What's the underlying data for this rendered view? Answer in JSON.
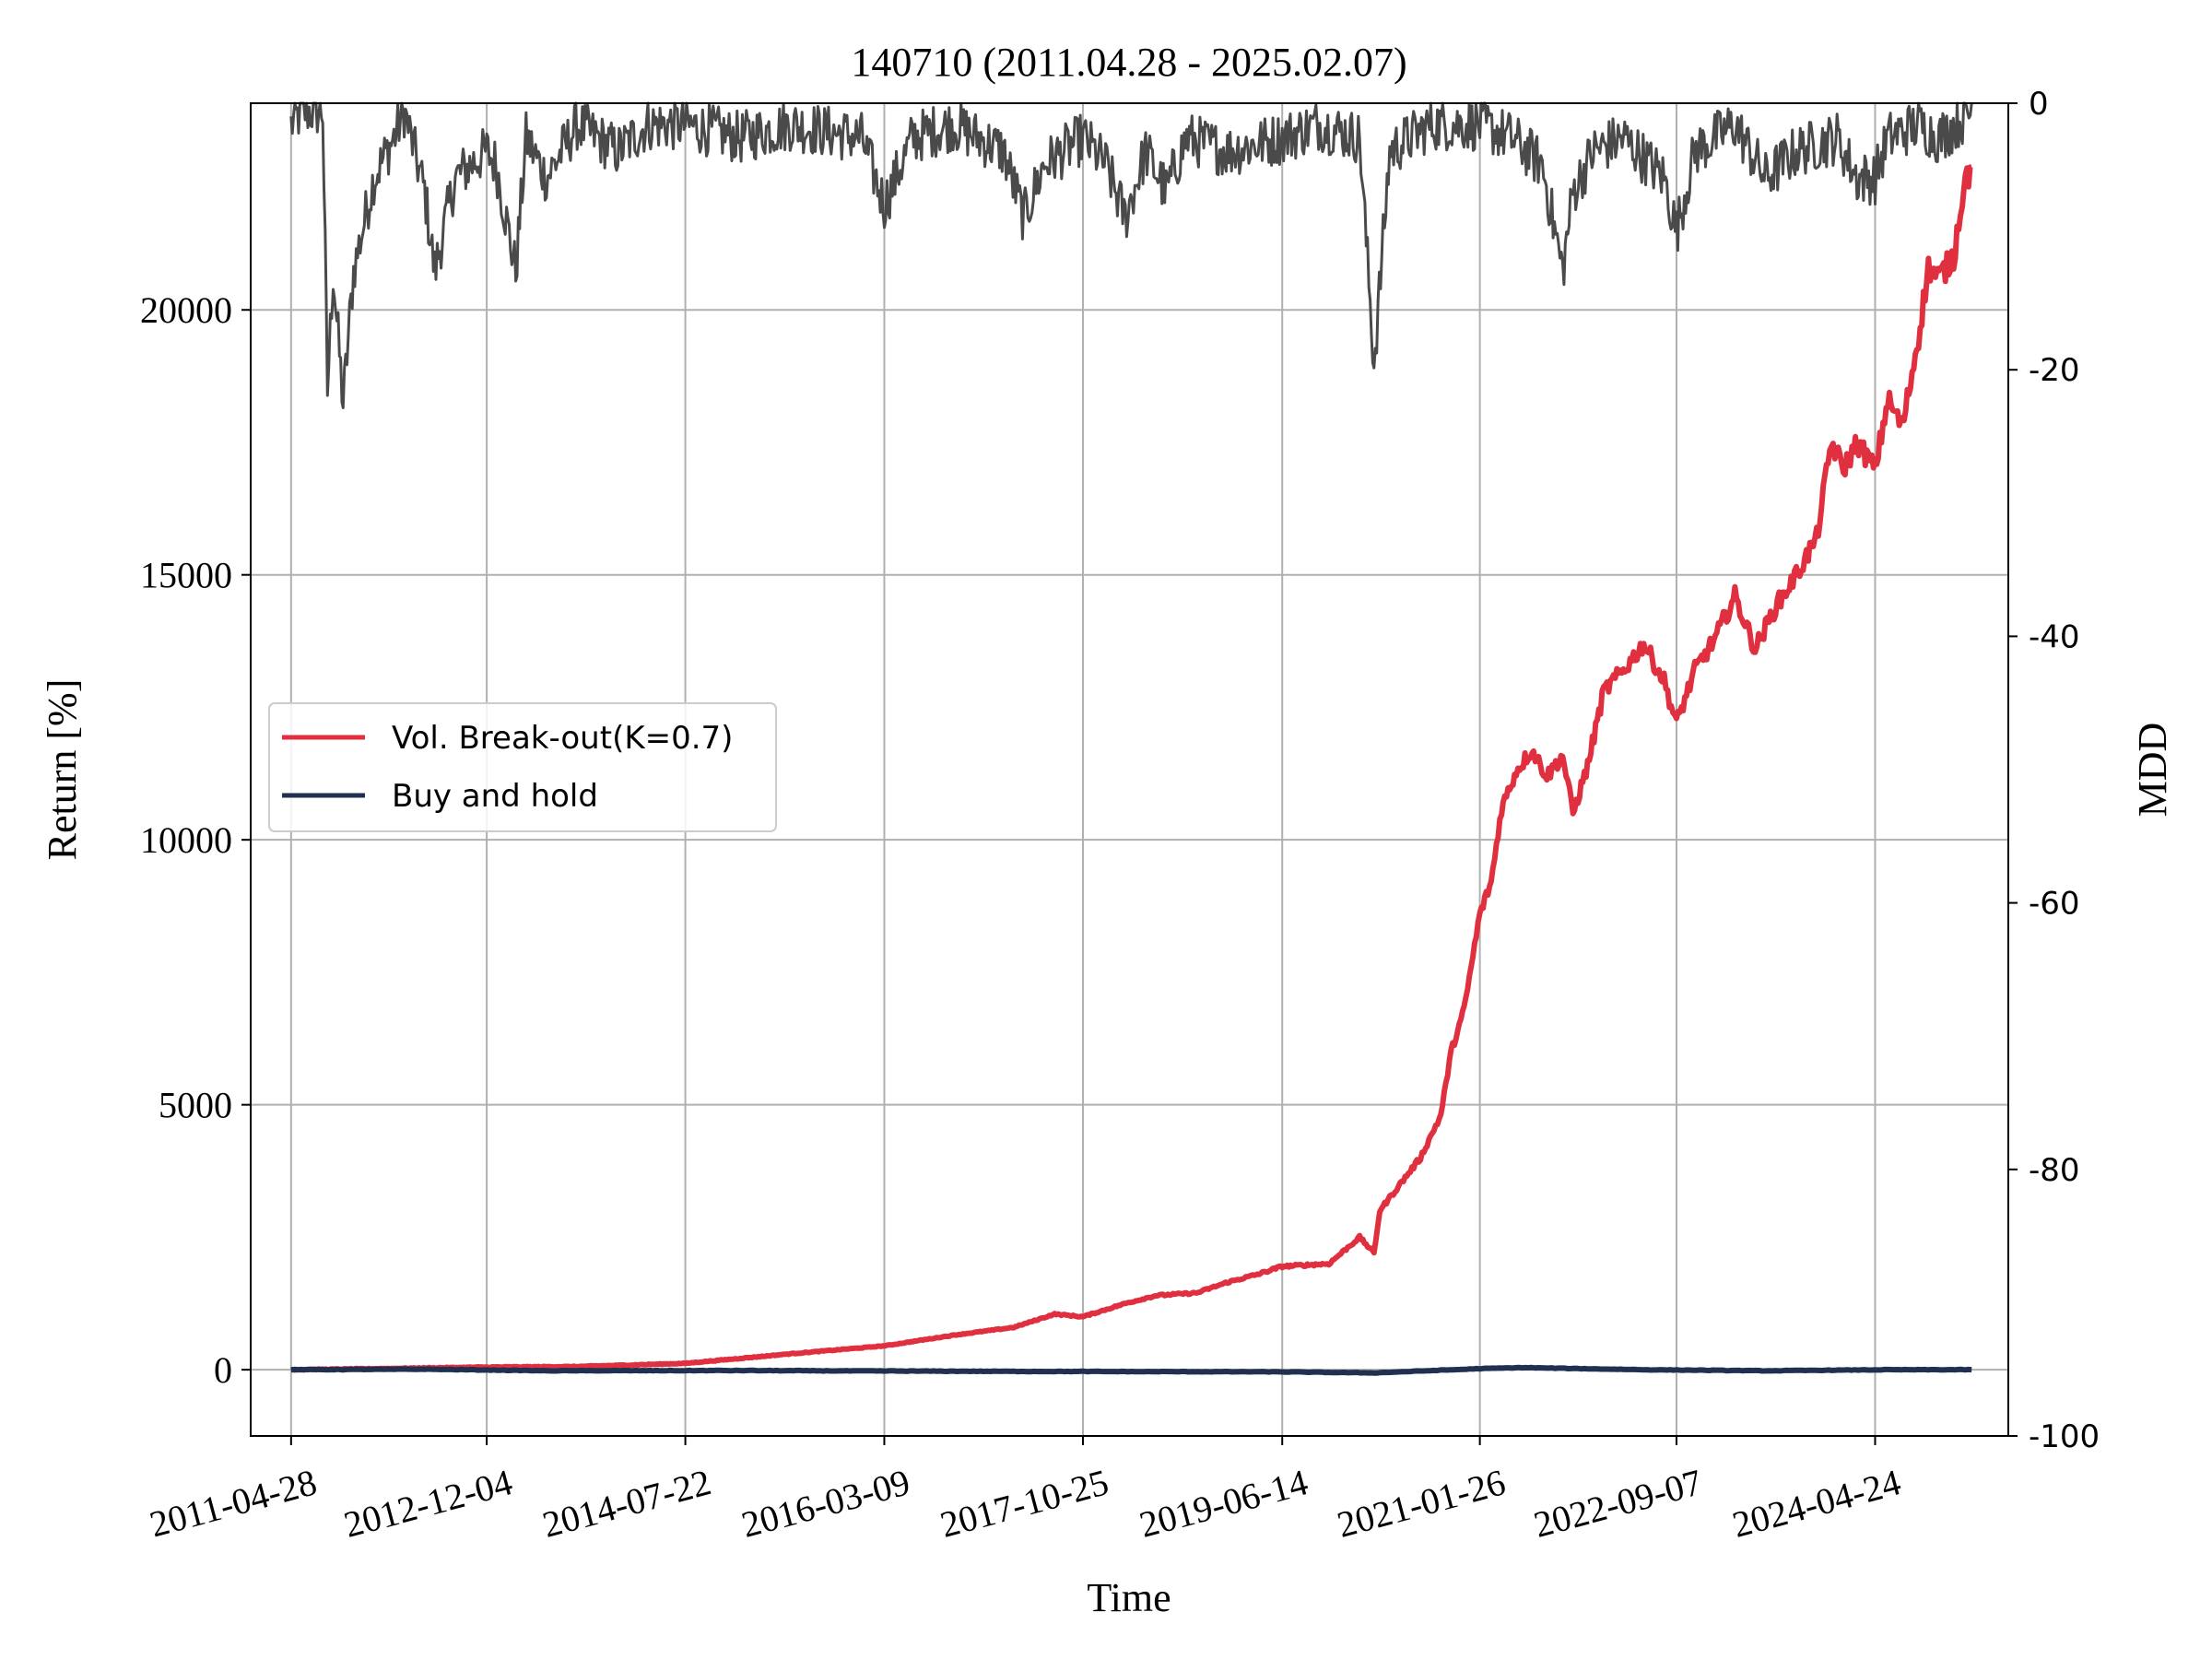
{
  "chart_data": {
    "type": "line",
    "title": "140710 (2011.04.28 - 2025.02.07)",
    "xlabel": "Time",
    "ylabel": "Return [%]",
    "y2label": "MDD",
    "x_tick_labels": [
      "2011-04-28",
      "2012-12-04",
      "2014-07-22",
      "2016-03-09",
      "2017-10-25",
      "2019-06-14",
      "2021-01-26",
      "2022-09-07",
      "2024-04-24"
    ],
    "x_range": [
      "2010-12-28",
      "2025-05-28"
    ],
    "ylim": [
      -1250,
      23900
    ],
    "y_ticks": [
      0,
      5000,
      10000,
      15000,
      20000
    ],
    "y2lim": [
      -100,
      0
    ],
    "y2_ticks": [
      0,
      -20,
      -40,
      -60,
      -80,
      -100
    ],
    "grid": true,
    "legend_position": "center-left",
    "series": [
      {
        "name": "Vol. Break-out(K=0.7)",
        "axis": "left",
        "color": "#e03040",
        "points": [
          [
            "2011-04-28",
            0
          ],
          [
            "2012-01-01",
            20
          ],
          [
            "2012-12-04",
            50
          ],
          [
            "2013-09-01",
            60
          ],
          [
            "2014-07-22",
            120
          ],
          [
            "2015-06-01",
            300
          ],
          [
            "2016-03-09",
            450
          ],
          [
            "2016-10-01",
            650
          ],
          [
            "2017-04-01",
            800
          ],
          [
            "2017-08-01",
            1050
          ],
          [
            "2017-10-25",
            1000
          ],
          [
            "2018-03-01",
            1250
          ],
          [
            "2018-06-01",
            1400
          ],
          [
            "2018-10-01",
            1450
          ],
          [
            "2019-01-01",
            1650
          ],
          [
            "2019-04-01",
            1800
          ],
          [
            "2019-06-14",
            1950
          ],
          [
            "2019-11-01",
            2000
          ],
          [
            "2020-02-01",
            2500
          ],
          [
            "2020-03-15",
            2200
          ],
          [
            "2020-04-01",
            3000
          ],
          [
            "2020-06-01",
            3500
          ],
          [
            "2020-08-01",
            4000
          ],
          [
            "2020-10-01",
            4800
          ],
          [
            "2020-11-01",
            6000
          ],
          [
            "2020-12-10",
            6800
          ],
          [
            "2021-01-26",
            8600
          ],
          [
            "2021-03-01",
            9200
          ],
          [
            "2021-04-01",
            10600
          ],
          [
            "2021-05-15",
            11300
          ],
          [
            "2021-07-01",
            11700
          ],
          [
            "2021-08-15",
            11200
          ],
          [
            "2021-10-01",
            11600
          ],
          [
            "2021-11-01",
            10500
          ],
          [
            "2021-12-15",
            11400
          ],
          [
            "2022-02-01",
            12800
          ],
          [
            "2022-04-01",
            13200
          ],
          [
            "2022-06-01",
            13700
          ],
          [
            "2022-08-01",
            13000
          ],
          [
            "2022-09-07",
            12200
          ],
          [
            "2022-11-01",
            13200
          ],
          [
            "2023-01-01",
            13800
          ],
          [
            "2023-03-01",
            14600
          ],
          [
            "2023-05-01",
            13600
          ],
          [
            "2023-07-01",
            14400
          ],
          [
            "2023-09-01",
            15000
          ],
          [
            "2023-11-01",
            15700
          ],
          [
            "2023-12-15",
            17500
          ],
          [
            "2024-01-20",
            17000
          ],
          [
            "2024-03-01",
            17500
          ],
          [
            "2024-04-24",
            17000
          ],
          [
            "2024-06-01",
            18300
          ],
          [
            "2024-07-15",
            17800
          ],
          [
            "2024-09-01",
            19500
          ],
          [
            "2024-10-01",
            20800
          ],
          [
            "2024-11-01",
            20600
          ],
          [
            "2024-12-15",
            21000
          ],
          [
            "2025-01-15",
            22400
          ],
          [
            "2025-02-07",
            22700
          ]
        ]
      },
      {
        "name": "Buy and hold",
        "axis": "left",
        "color": "#1f3050",
        "points": [
          [
            "2011-04-28",
            0
          ],
          [
            "2012-06-01",
            10
          ],
          [
            "2013-06-01",
            -20
          ],
          [
            "2015-01-01",
            -15
          ],
          [
            "2017-01-01",
            -30
          ],
          [
            "2019-06-14",
            -40
          ],
          [
            "2020-03-15",
            -60
          ],
          [
            "2021-01-26",
            20
          ],
          [
            "2021-06-01",
            40
          ],
          [
            "2022-06-01",
            0
          ],
          [
            "2023-06-01",
            -20
          ],
          [
            "2024-06-01",
            0
          ],
          [
            "2025-02-07",
            0
          ]
        ]
      },
      {
        "name": "MDD",
        "axis": "right",
        "color": "#4a4a4a",
        "points": [
          [
            "2011-04-28",
            -1
          ],
          [
            "2011-06-01",
            0
          ],
          [
            "2011-08-01",
            0
          ],
          [
            "2011-08-15",
            -21
          ],
          [
            "2011-09-01",
            -12
          ],
          [
            "2011-10-01",
            -22
          ],
          [
            "2011-11-01",
            -12
          ],
          [
            "2012-01-01",
            -5
          ],
          [
            "2012-03-01",
            -2
          ],
          [
            "2012-04-01",
            0
          ],
          [
            "2012-06-01",
            -6
          ],
          [
            "2012-07-01",
            -12
          ],
          [
            "2012-09-01",
            -5
          ],
          [
            "2012-12-04",
            -3
          ],
          [
            "2013-01-01",
            -4
          ],
          [
            "2013-03-01",
            -12
          ],
          [
            "2013-04-01",
            -2
          ],
          [
            "2013-06-01",
            -5
          ],
          [
            "2013-09-01",
            -1
          ],
          [
            "2014-01-01",
            -3
          ],
          [
            "2014-04-01",
            -1
          ],
          [
            "2014-07-22",
            -1
          ],
          [
            "2015-01-01",
            -2
          ],
          [
            "2015-06-01",
            -1
          ],
          [
            "2016-01-01",
            -2
          ],
          [
            "2016-03-09",
            -7
          ],
          [
            "2016-06-01",
            -2
          ],
          [
            "2016-10-01",
            -1
          ],
          [
            "2017-03-01",
            -3
          ],
          [
            "2017-05-01",
            -8
          ],
          [
            "2017-07-01",
            -4
          ],
          [
            "2017-10-25",
            -2
          ],
          [
            "2018-01-01",
            -4
          ],
          [
            "2018-03-01",
            -8
          ],
          [
            "2018-05-01",
            -3
          ],
          [
            "2018-07-01",
            -6
          ],
          [
            "2018-09-01",
            -2
          ],
          [
            "2019-01-01",
            -3
          ],
          [
            "2019-06-14",
            -2
          ],
          [
            "2019-10-01",
            -1
          ],
          [
            "2020-02-01",
            -2
          ],
          [
            "2020-03-15",
            -19
          ],
          [
            "2020-05-01",
            -3
          ],
          [
            "2020-09-01",
            -1
          ],
          [
            "2021-01-26",
            -1
          ],
          [
            "2021-05-01",
            -2
          ],
          [
            "2021-08-01",
            -4
          ],
          [
            "2021-10-01",
            -12
          ],
          [
            "2021-11-01",
            -6
          ],
          [
            "2022-01-01",
            -3
          ],
          [
            "2022-04-01",
            -2
          ],
          [
            "2022-08-01",
            -5
          ],
          [
            "2022-09-07",
            -9
          ],
          [
            "2022-11-01",
            -3
          ],
          [
            "2023-03-01",
            -1
          ],
          [
            "2023-06-01",
            -5
          ],
          [
            "2023-09-01",
            -3
          ],
          [
            "2024-01-01",
            -2
          ],
          [
            "2024-03-01",
            -5
          ],
          [
            "2024-04-24",
            -5
          ],
          [
            "2024-06-01",
            -2
          ],
          [
            "2024-09-01",
            -1
          ],
          [
            "2024-11-01",
            -2
          ],
          [
            "2025-02-07",
            0
          ]
        ]
      }
    ]
  }
}
